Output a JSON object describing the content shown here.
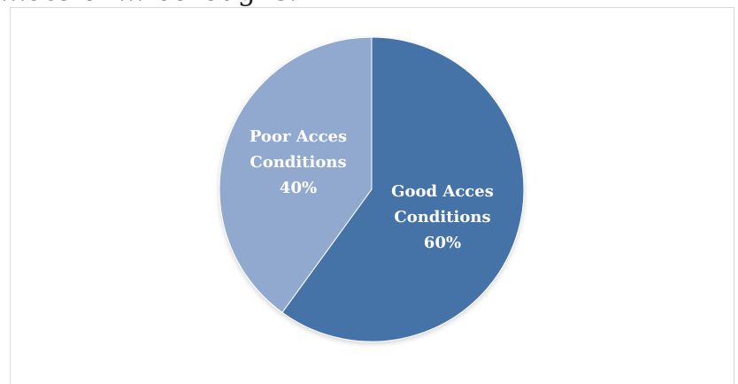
{
  "page": {
    "top_text": "...ate of ... boroughs."
  },
  "chart_data": {
    "type": "pie",
    "title": "",
    "categories": [
      "Good Acces Conditions",
      "Poor Acces Conditions"
    ],
    "values": [
      60,
      40
    ],
    "labels": [
      {
        "name": "Good Acces Conditions",
        "lines": [
          "Good Acces",
          "Conditions"
        ],
        "percent": "60%"
      },
      {
        "name": "Poor Acces Conditions",
        "lines": [
          "Poor Acces",
          "Conditions"
        ],
        "percent": "40%"
      }
    ],
    "colors": [
      "#4573a7",
      "#92a9cf"
    ],
    "legend": "none",
    "start_angle": "12 o'clock",
    "direction": "clockwise"
  }
}
